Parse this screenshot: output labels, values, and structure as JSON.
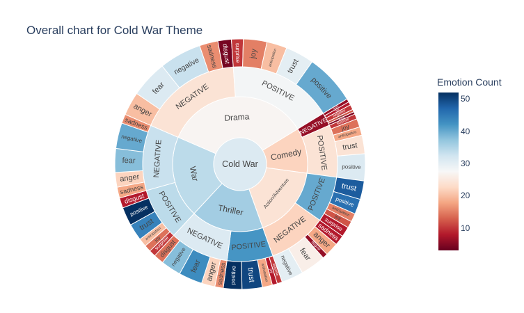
{
  "chart_data": {
    "type": "sunburst",
    "title": "Overall chart for Cold War Theme",
    "center": "Cold War",
    "colorbar": {
      "title": "Emotion Count",
      "ticks": [
        10,
        20,
        30,
        40,
        50
      ],
      "range": [
        3,
        52
      ],
      "colorscale": "RdBu"
    },
    "genres": [
      {
        "name": "Drama",
        "value": 160,
        "color": 27,
        "children": [
          {
            "name": "NEGATIVE",
            "value": 80,
            "color": 24,
            "children": [
              {
                "name": "anger",
                "value": 14,
                "color": 20
              },
              {
                "name": "fear",
                "value": 22,
                "color": 31
              },
              {
                "name": "negative",
                "value": 25,
                "color": 33
              },
              {
                "name": "sadness",
                "value": 11,
                "color": 16
              },
              {
                "name": "disgust",
                "value": 8,
                "color": 4
              }
            ]
          },
          {
            "name": "POSITIVE",
            "value": 80,
            "color": 28,
            "children": [
              {
                "name": "surprise",
                "value": 7,
                "color": 10
              },
              {
                "name": "joy",
                "value": 14,
                "color": 15
              },
              {
                "name": "anticipation",
                "value": 12,
                "color": 20
              },
              {
                "name": "trust",
                "value": 17,
                "color": 30
              },
              {
                "name": "positive",
                "value": 30,
                "color": 40
              }
            ]
          }
        ]
      },
      {
        "name": "Comedy",
        "value": 50,
        "color": 22,
        "children": [
          {
            "name": "NEGATIVE",
            "value": 10,
            "color": 6,
            "children": [
              {
                "name": "anger",
                "value": 2,
                "color": 6
              },
              {
                "name": "fear",
                "value": 2,
                "color": 8
              },
              {
                "name": "negative",
                "value": 3,
                "color": 10
              },
              {
                "name": "sadness",
                "value": 1.5,
                "color": 12
              },
              {
                "name": "disgust",
                "value": 1.5,
                "color": 5
              }
            ]
          },
          {
            "name": "POSITIVE",
            "value": 40,
            "color": 24,
            "children": [
              {
                "name": "surprise",
                "value": 3,
                "color": 10
              },
              {
                "name": "joy",
                "value": 5,
                "color": 14
              },
              {
                "name": "anticipation",
                "value": 5,
                "color": 18
              },
              {
                "name": "trust",
                "value": 11,
                "color": 24
              },
              {
                "name": "positive",
                "value": 16,
                "color": 31
              }
            ]
          }
        ]
      },
      {
        "name": "Action/Adventure",
        "value": 80,
        "color": 24,
        "children": [
          {
            "name": "POSITIVE",
            "value": 35,
            "color": 40,
            "children": [
              {
                "name": "trust",
                "value": 11,
                "color": 48
              },
              {
                "name": "positive",
                "value": 9,
                "color": 46
              },
              {
                "name": "anticipation",
                "value": 5,
                "color": 15
              },
              {
                "name": "joy",
                "value": 4,
                "color": 12
              },
              {
                "name": "surprise",
                "value": 6,
                "color": 8
              }
            ]
          },
          {
            "name": "NEGATIVE",
            "value": 45,
            "color": 22,
            "children": [
              {
                "name": "sadness",
                "value": 6,
                "color": 8
              },
              {
                "name": "anger",
                "value": 8,
                "color": 18
              },
              {
                "name": "disgust",
                "value": 3,
                "color": 6
              },
              {
                "name": "fear",
                "value": 15,
                "color": 26
              },
              {
                "name": "negative",
                "value": 13,
                "color": 30
              }
            ]
          }
        ]
      },
      {
        "name": "Thriller",
        "value": 80,
        "color": 36,
        "children": [
          {
            "name": "POSITIVE",
            "value": 35,
            "color": 42,
            "children": [
              {
                "name": "surprise",
                "value": 3,
                "color": 10
              },
              {
                "name": "joy",
                "value": 3,
                "color": 8
              },
              {
                "name": "anticipation",
                "value": 6,
                "color": 18
              },
              {
                "name": "trust",
                "value": 12,
                "color": 50
              },
              {
                "name": "positive",
                "value": 11,
                "color": 52
              }
            ]
          },
          {
            "name": "NEGATIVE",
            "value": 45,
            "color": 31,
            "children": [
              {
                "name": "sadness",
                "value": 5,
                "color": 16
              },
              {
                "name": "anger",
                "value": 8,
                "color": 22
              },
              {
                "name": "fear",
                "value": 14,
                "color": 43
              },
              {
                "name": "negative",
                "value": 12,
                "color": 38
              },
              {
                "name": "disgust",
                "value": 6,
                "color": 14
              }
            ]
          }
        ]
      },
      {
        "name": "War",
        "value": 90,
        "color": 34,
        "children": [
          {
            "name": "POSITIVE",
            "value": 40,
            "color": 34,
            "children": [
              {
                "name": "surprise",
                "value": 4,
                "color": 10
              },
              {
                "name": "joy",
                "value": 4,
                "color": 14
              },
              {
                "name": "anticipation",
                "value": 5,
                "color": 20
              },
              {
                "name": "trust",
                "value": 10,
                "color": 44
              },
              {
                "name": "positive",
                "value": 11,
                "color": 52
              },
              {
                "name": "disgust",
                "value": 6,
                "color": 8
              }
            ]
          },
          {
            "name": "NEGATIVE",
            "value": 50,
            "color": 33,
            "children": [
              {
                "name": "sadness",
                "value": 6,
                "color": 18
              },
              {
                "name": "anger",
                "value": 8,
                "color": 22
              },
              {
                "name": "fear",
                "value": 13,
                "color": 38
              },
              {
                "name": "negative",
                "value": 14,
                "color": 40
              },
              {
                "name": "sadness",
                "value": 5,
                "color": 16
              }
            ]
          }
        ]
      }
    ]
  }
}
